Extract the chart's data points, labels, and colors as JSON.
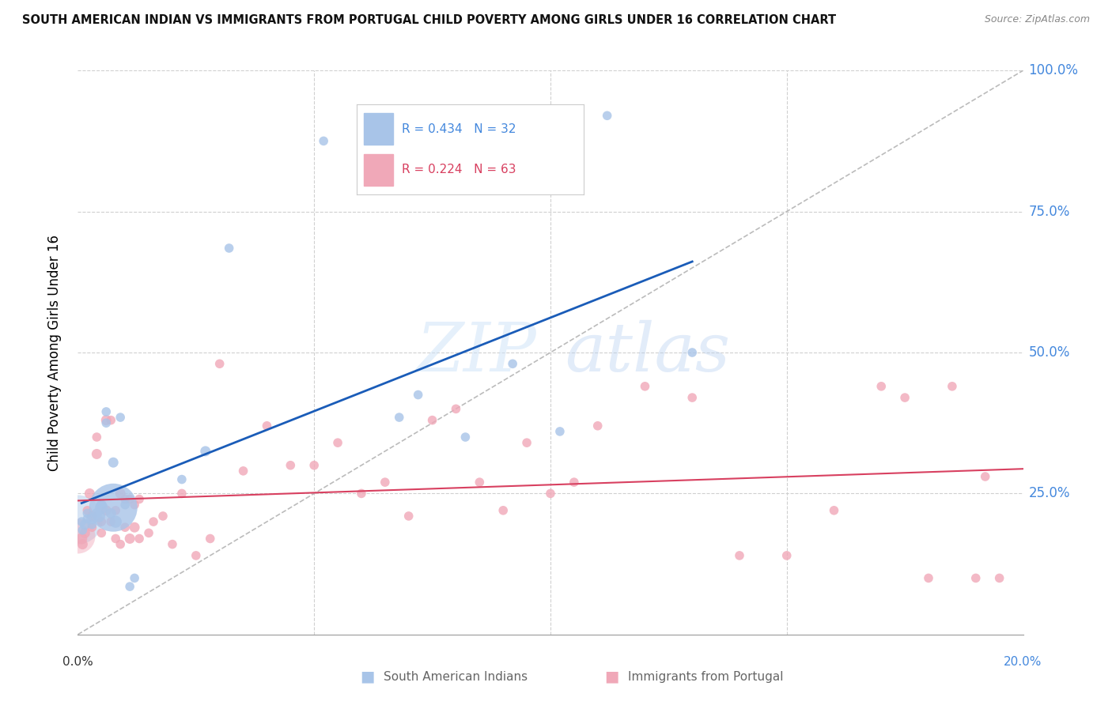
{
  "title": "SOUTH AMERICAN INDIAN VS IMMIGRANTS FROM PORTUGAL CHILD POVERTY AMONG GIRLS UNDER 16 CORRELATION CHART",
  "source": "Source: ZipAtlas.com",
  "ylabel": "Child Poverty Among Girls Under 16",
  "blue_R": 0.434,
  "blue_N": 32,
  "pink_R": 0.224,
  "pink_N": 63,
  "blue_label": "South American Indians",
  "pink_label": "Immigrants from Portugal",
  "blue_color": "#a8c4e8",
  "pink_color": "#f0a8b8",
  "blue_line_color": "#1a5cb8",
  "pink_line_color": "#d84060",
  "axis_label_color": "#4488dd",
  "background": "#ffffff",
  "blue_scatter_x": [
    0.0008,
    0.001,
    0.0015,
    0.002,
    0.002,
    0.003,
    0.003,
    0.004,
    0.0045,
    0.005,
    0.005,
    0.006,
    0.006,
    0.007,
    0.0075,
    0.0075,
    0.008,
    0.009,
    0.01,
    0.011,
    0.012,
    0.022,
    0.027,
    0.032,
    0.052,
    0.068,
    0.072,
    0.082,
    0.092,
    0.102,
    0.112,
    0.13
  ],
  "blue_scatter_y": [
    0.2,
    0.185,
    0.195,
    0.215,
    0.205,
    0.205,
    0.195,
    0.215,
    0.21,
    0.225,
    0.23,
    0.395,
    0.375,
    0.215,
    0.225,
    0.305,
    0.2,
    0.385,
    0.23,
    0.085,
    0.1,
    0.275,
    0.325,
    0.685,
    0.875,
    0.385,
    0.425,
    0.35,
    0.48,
    0.36,
    0.92,
    0.5
  ],
  "blue_scatter_sizes": [
    20,
    20,
    25,
    20,
    20,
    30,
    20,
    25,
    35,
    40,
    25,
    20,
    20,
    25,
    550,
    25,
    35,
    20,
    20,
    20,
    20,
    20,
    25,
    20,
    20,
    20,
    20,
    20,
    20,
    20,
    20,
    20
  ],
  "pink_scatter_x": [
    0.0008,
    0.001,
    0.0015,
    0.002,
    0.0025,
    0.003,
    0.003,
    0.004,
    0.004,
    0.005,
    0.005,
    0.006,
    0.006,
    0.007,
    0.007,
    0.008,
    0.008,
    0.009,
    0.009,
    0.01,
    0.01,
    0.011,
    0.011,
    0.012,
    0.012,
    0.013,
    0.013,
    0.015,
    0.016,
    0.018,
    0.02,
    0.022,
    0.025,
    0.028,
    0.03,
    0.035,
    0.04,
    0.045,
    0.05,
    0.055,
    0.06,
    0.065,
    0.07,
    0.075,
    0.08,
    0.085,
    0.09,
    0.095,
    0.1,
    0.105,
    0.11,
    0.12,
    0.13,
    0.14,
    0.15,
    0.16,
    0.17,
    0.175,
    0.18,
    0.185,
    0.19,
    0.192,
    0.195
  ],
  "pink_scatter_y": [
    0.17,
    0.16,
    0.18,
    0.22,
    0.25,
    0.21,
    0.19,
    0.32,
    0.35,
    0.2,
    0.18,
    0.22,
    0.38,
    0.2,
    0.38,
    0.22,
    0.17,
    0.16,
    0.25,
    0.19,
    0.24,
    0.17,
    0.24,
    0.23,
    0.19,
    0.17,
    0.24,
    0.18,
    0.2,
    0.21,
    0.16,
    0.25,
    0.14,
    0.17,
    0.48,
    0.29,
    0.37,
    0.3,
    0.3,
    0.34,
    0.25,
    0.27,
    0.21,
    0.38,
    0.4,
    0.27,
    0.22,
    0.34,
    0.25,
    0.27,
    0.37,
    0.44,
    0.42,
    0.14,
    0.14,
    0.22,
    0.44,
    0.42,
    0.1,
    0.44,
    0.1,
    0.28,
    0.1
  ],
  "pink_scatter_sizes": [
    30,
    25,
    25,
    20,
    25,
    25,
    20,
    25,
    20,
    20,
    20,
    25,
    25,
    20,
    20,
    20,
    20,
    20,
    25,
    20,
    20,
    25,
    20,
    20,
    25,
    20,
    20,
    20,
    20,
    20,
    20,
    20,
    20,
    20,
    20,
    20,
    20,
    20,
    20,
    20,
    20,
    20,
    20,
    20,
    20,
    20,
    20,
    20,
    20,
    20,
    20,
    20,
    20,
    20,
    20,
    20,
    20,
    20,
    20,
    20,
    20,
    20,
    20
  ]
}
